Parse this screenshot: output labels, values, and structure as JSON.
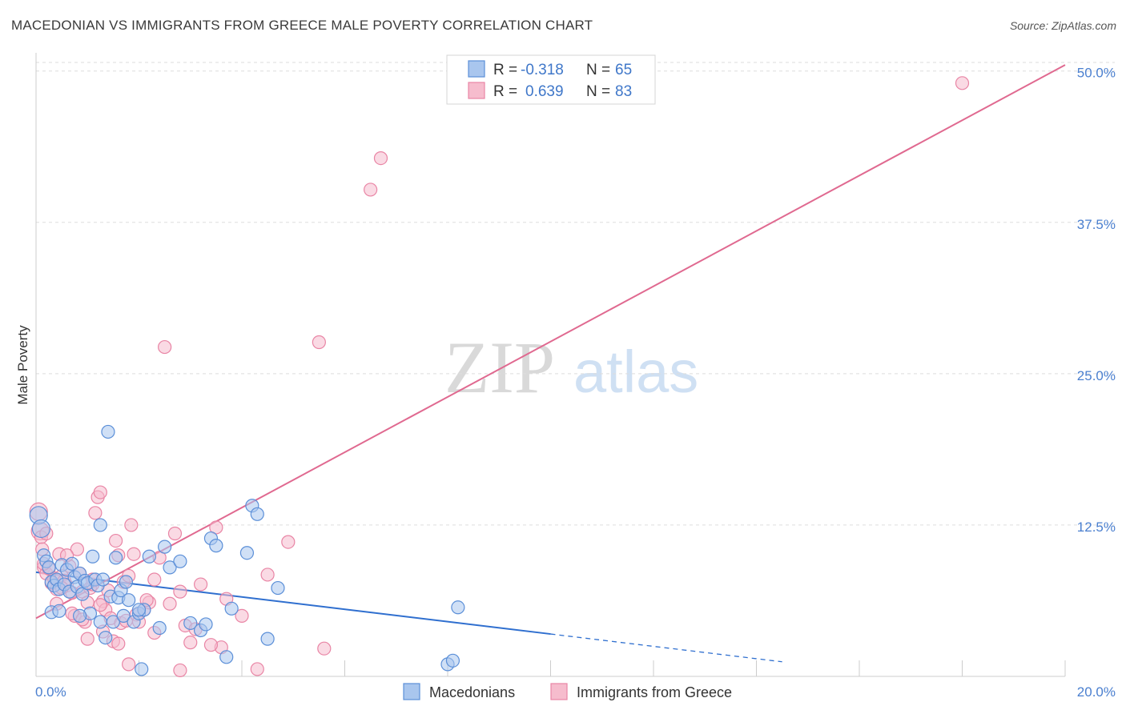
{
  "title": "MACEDONIAN VS IMMIGRANTS FROM GREECE MALE POVERTY CORRELATION CHART",
  "source": "Source: ZipAtlas.com",
  "watermark": {
    "zip": "ZIP",
    "atlas": "atlas"
  },
  "colors": {
    "blue_fill": "#a9c6ee",
    "blue_stroke": "#5b8fd8",
    "blue_line": "#2f6fcf",
    "pink_fill": "#f6bccd",
    "pink_stroke": "#e985a5",
    "pink_line": "#e06990",
    "grid": "#dddddd",
    "axis_text": "#4a7fcf"
  },
  "legend": {
    "r_label": "R =",
    "n_label": "N =",
    "rows": [
      {
        "series": "Macedonians",
        "r": "-0.318",
        "n": "65"
      },
      {
        "series": "Immigrants from Greece",
        "r": "0.639",
        "n": "83"
      }
    ]
  },
  "chart_data": {
    "type": "scatter",
    "title": "MACEDONIAN VS IMMIGRANTS FROM GREECE MALE POVERTY CORRELATION CHART",
    "xlabel": "",
    "ylabel": "Male Poverty",
    "xlim": [
      0,
      20
    ],
    "ylim": [
      0,
      51.5
    ],
    "x_tick_labels": [
      "0.0%",
      "20.0%"
    ],
    "y_ticks": [
      12.5,
      25.0,
      37.5,
      50.0
    ],
    "y_tick_labels": [
      "12.5%",
      "25.0%",
      "37.5%",
      "50.0%"
    ],
    "legend_placement": "bottom-center",
    "series": [
      {
        "name": "Macedonians",
        "color": "blue",
        "trend": {
          "x0": 0,
          "y0": 8.6,
          "x1": 20,
          "y1": -1.6,
          "solid_until_x": 10
        },
        "points": [
          [
            0.05,
            13.3
          ],
          [
            0.1,
            12.2
          ],
          [
            0.15,
            10.0
          ],
          [
            0.2,
            9.5
          ],
          [
            0.25,
            9.0
          ],
          [
            0.3,
            7.8
          ],
          [
            0.35,
            7.5
          ],
          [
            0.4,
            8.0
          ],
          [
            0.45,
            7.2
          ],
          [
            0.5,
            9.2
          ],
          [
            0.55,
            7.6
          ],
          [
            0.6,
            8.8
          ],
          [
            0.65,
            7.0
          ],
          [
            0.7,
            9.3
          ],
          [
            0.75,
            8.2
          ],
          [
            0.8,
            7.4
          ],
          [
            0.85,
            8.5
          ],
          [
            0.9,
            6.8
          ],
          [
            0.95,
            7.9
          ],
          [
            1.0,
            7.7
          ],
          [
            1.05,
            5.2
          ],
          [
            1.1,
            9.9
          ],
          [
            1.15,
            8.0
          ],
          [
            1.2,
            7.5
          ],
          [
            1.25,
            4.5
          ],
          [
            1.3,
            8.0
          ],
          [
            1.35,
            3.2
          ],
          [
            1.4,
            20.2
          ],
          [
            1.45,
            6.6
          ],
          [
            1.5,
            4.5
          ],
          [
            1.55,
            9.8
          ],
          [
            1.6,
            6.5
          ],
          [
            1.65,
            7.1
          ],
          [
            1.7,
            5.0
          ],
          [
            1.75,
            7.8
          ],
          [
            1.8,
            6.3
          ],
          [
            1.9,
            4.5
          ],
          [
            2.0,
            5.2
          ],
          [
            2.05,
            0.6
          ],
          [
            2.1,
            5.5
          ],
          [
            2.2,
            9.9
          ],
          [
            2.4,
            4.0
          ],
          [
            2.5,
            10.7
          ],
          [
            2.6,
            9.0
          ],
          [
            2.8,
            9.5
          ],
          [
            3.0,
            4.4
          ],
          [
            3.2,
            3.8
          ],
          [
            3.4,
            11.4
          ],
          [
            3.5,
            10.8
          ],
          [
            3.7,
            1.6
          ],
          [
            3.8,
            5.6
          ],
          [
            4.1,
            10.2
          ],
          [
            4.2,
            14.1
          ],
          [
            4.3,
            13.4
          ],
          [
            4.5,
            3.1
          ],
          [
            4.7,
            7.3
          ],
          [
            8.0,
            1.0
          ],
          [
            8.1,
            1.3
          ],
          [
            8.2,
            5.7
          ],
          [
            0.3,
            5.3
          ],
          [
            0.45,
            5.4
          ],
          [
            1.25,
            12.5
          ],
          [
            2.0,
            5.5
          ],
          [
            3.3,
            4.3
          ],
          [
            0.85,
            5.0
          ]
        ]
      },
      {
        "name": "Immigrants from Greece",
        "color": "pink",
        "trend": {
          "x0": 0,
          "y0": 4.8,
          "x1": 20,
          "y1": 50.5
        },
        "points": [
          [
            0.05,
            13.6
          ],
          [
            0.08,
            12.0
          ],
          [
            0.1,
            11.5
          ],
          [
            0.12,
            10.5
          ],
          [
            0.15,
            9.0
          ],
          [
            0.2,
            8.5
          ],
          [
            0.25,
            8.9
          ],
          [
            0.3,
            7.7
          ],
          [
            0.35,
            8.1
          ],
          [
            0.4,
            7.2
          ],
          [
            0.45,
            10.1
          ],
          [
            0.5,
            8.3
          ],
          [
            0.55,
            7.9
          ],
          [
            0.6,
            7.5
          ],
          [
            0.65,
            9.1
          ],
          [
            0.7,
            6.9
          ],
          [
            0.75,
            5.0
          ],
          [
            0.8,
            10.5
          ],
          [
            0.85,
            8.5
          ],
          [
            0.9,
            7.0
          ],
          [
            0.95,
            4.5
          ],
          [
            1.0,
            6.1
          ],
          [
            1.05,
            7.3
          ],
          [
            1.1,
            7.6
          ],
          [
            1.15,
            13.5
          ],
          [
            1.2,
            14.8
          ],
          [
            1.25,
            15.2
          ],
          [
            1.3,
            6.2
          ],
          [
            1.35,
            5.5
          ],
          [
            1.4,
            7.1
          ],
          [
            1.45,
            4.8
          ],
          [
            1.5,
            2.9
          ],
          [
            1.55,
            11.2
          ],
          [
            1.6,
            10.0
          ],
          [
            1.65,
            4.4
          ],
          [
            1.7,
            7.8
          ],
          [
            1.75,
            4.6
          ],
          [
            1.8,
            8.3
          ],
          [
            1.85,
            12.5
          ],
          [
            1.9,
            10.1
          ],
          [
            1.95,
            5.1
          ],
          [
            2.0,
            4.5
          ],
          [
            2.1,
            5.5
          ],
          [
            2.2,
            6.1
          ],
          [
            2.3,
            8.0
          ],
          [
            2.4,
            9.8
          ],
          [
            2.5,
            27.2
          ],
          [
            2.6,
            6.0
          ],
          [
            2.7,
            11.8
          ],
          [
            2.8,
            7.0
          ],
          [
            2.9,
            4.2
          ],
          [
            3.0,
            2.8
          ],
          [
            3.1,
            3.9
          ],
          [
            3.2,
            7.6
          ],
          [
            3.5,
            12.3
          ],
          [
            3.6,
            2.4
          ],
          [
            3.7,
            6.4
          ],
          [
            4.3,
            0.6
          ],
          [
            4.5,
            8.4
          ],
          [
            4.9,
            11.1
          ],
          [
            5.5,
            27.6
          ],
          [
            5.6,
            2.3
          ],
          [
            6.5,
            40.2
          ],
          [
            6.7,
            42.8
          ],
          [
            18.0,
            49.0
          ],
          [
            0.2,
            11.8
          ],
          [
            0.15,
            9.3
          ],
          [
            0.5,
            7.3
          ],
          [
            0.7,
            5.2
          ],
          [
            1.0,
            3.1
          ],
          [
            1.8,
            1.0
          ],
          [
            2.8,
            0.5
          ],
          [
            1.1,
            8.0
          ],
          [
            0.4,
            6.0
          ],
          [
            0.9,
            4.7
          ],
          [
            1.3,
            3.7
          ],
          [
            1.6,
            2.7
          ],
          [
            2.3,
            3.6
          ],
          [
            3.4,
            2.6
          ],
          [
            4.0,
            5.0
          ],
          [
            2.15,
            6.3
          ],
          [
            1.25,
            5.9
          ],
          [
            0.6,
            10.0
          ]
        ]
      }
    ]
  },
  "bottom_legend": [
    {
      "label": "Macedonians",
      "color": "blue"
    },
    {
      "label": "Immigrants from Greece",
      "color": "pink"
    }
  ]
}
